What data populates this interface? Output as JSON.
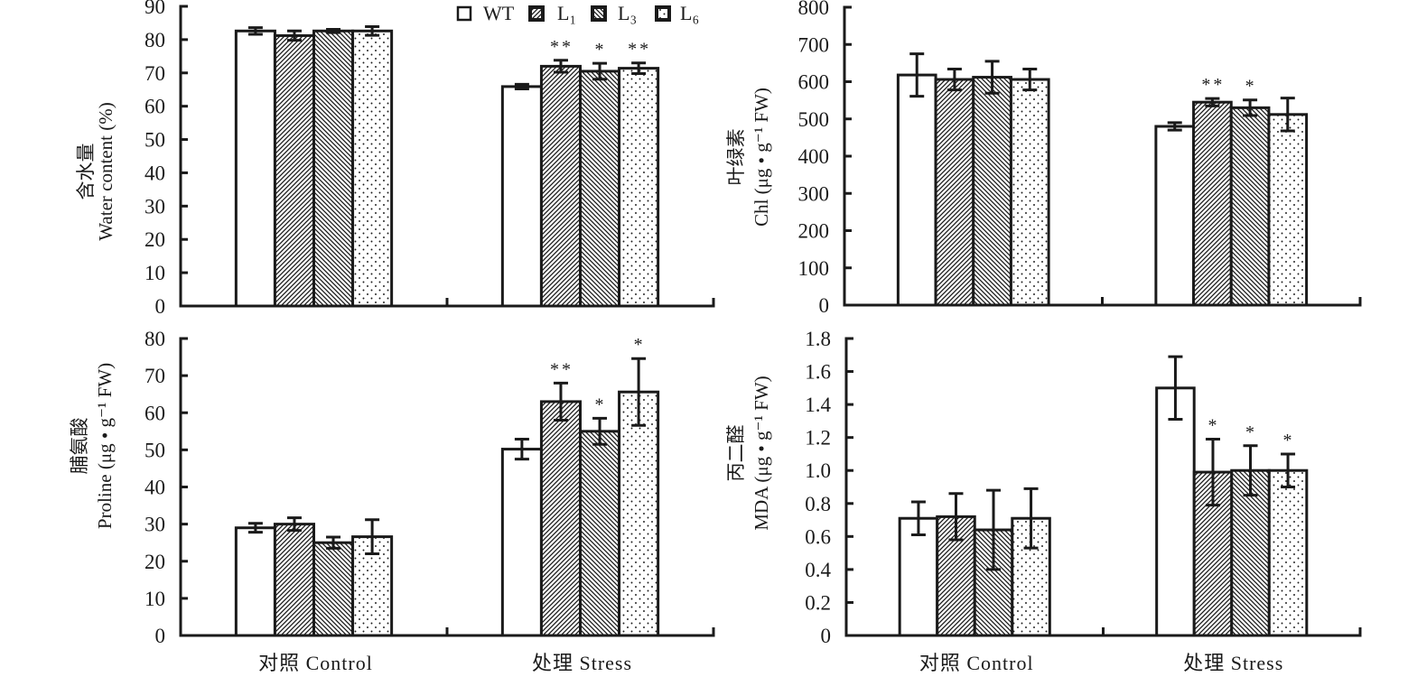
{
  "legend": {
    "placement": "top-center",
    "entries": [
      {
        "label": "WT",
        "pattern": "open"
      },
      {
        "label": "L₁",
        "pattern": "forward-hatch"
      },
      {
        "label": "L₃",
        "pattern": "backward-hatch"
      },
      {
        "label": "L₆",
        "pattern": "dots"
      }
    ]
  },
  "chart_data": [
    {
      "type": "bar",
      "title": "",
      "ylabel_cn": "含水量",
      "ylabel": "Water content (%)",
      "xlabel": "",
      "categories": [
        "对照 Control",
        "处理 Stress"
      ],
      "xticklabels": [],
      "ylim": [
        0,
        90
      ],
      "yticks": [
        "0",
        "10",
        "20",
        "30",
        "40",
        "50",
        "60",
        "70",
        "80",
        "90"
      ],
      "grid": false,
      "series": [
        {
          "name": "WT",
          "values": [
            82.6,
            65.9
          ],
          "errors": [
            1.0,
            0.7
          ],
          "significance": [
            "",
            ""
          ]
        },
        {
          "name": "L1",
          "values": [
            81.2,
            72.0
          ],
          "errors": [
            1.4,
            1.8
          ],
          "significance": [
            "",
            "**"
          ]
        },
        {
          "name": "L3",
          "values": [
            82.6,
            70.5
          ],
          "errors": [
            0.5,
            2.4
          ],
          "significance": [
            "",
            "*"
          ]
        },
        {
          "name": "L6",
          "values": [
            82.6,
            71.4
          ],
          "errors": [
            1.3,
            1.6
          ],
          "significance": [
            "",
            "**"
          ]
        }
      ]
    },
    {
      "type": "bar",
      "title": "",
      "ylabel_cn": "叶绿素",
      "ylabel": "Chl (μg • g⁻¹  FW)",
      "xlabel": "",
      "categories": [
        "对照 Control",
        "处理 Stress"
      ],
      "xticklabels": [],
      "ylim": [
        0,
        800
      ],
      "yticks": [
        "0",
        "100",
        "200",
        "300",
        "400",
        "500",
        "600",
        "700",
        "800"
      ],
      "grid": false,
      "series": [
        {
          "name": "WT",
          "values": [
            618,
            480
          ],
          "errors": [
            57,
            10
          ],
          "significance": [
            "",
            ""
          ]
        },
        {
          "name": "L1",
          "values": [
            606,
            545
          ],
          "errors": [
            28,
            10
          ],
          "significance": [
            "",
            "**"
          ]
        },
        {
          "name": "L3",
          "values": [
            612,
            530
          ],
          "errors": [
            43,
            21
          ],
          "significance": [
            "",
            "*"
          ]
        },
        {
          "name": "L6",
          "values": [
            606,
            512
          ],
          "errors": [
            28,
            44
          ],
          "significance": [
            "",
            ""
          ]
        }
      ]
    },
    {
      "type": "bar",
      "title": "",
      "ylabel_cn": "脯氨酸",
      "ylabel": "Proline (μg • g⁻¹  FW)",
      "xlabel": "",
      "categories": [
        "对照 Control",
        "处理 Stress"
      ],
      "xticklabels": [
        "对照 Control",
        "处理 Stress"
      ],
      "ylim": [
        0,
        80
      ],
      "yticks": [
        "0",
        "10",
        "20",
        "30",
        "40",
        "50",
        "60",
        "70",
        "80"
      ],
      "grid": false,
      "series": [
        {
          "name": "WT",
          "values": [
            29.0,
            50.2
          ],
          "errors": [
            1.2,
            2.7
          ],
          "significance": [
            "",
            ""
          ]
        },
        {
          "name": "L1",
          "values": [
            30.0,
            63.0
          ],
          "errors": [
            1.7,
            5.0
          ],
          "significance": [
            "",
            "**"
          ]
        },
        {
          "name": "L3",
          "values": [
            25.0,
            55.0
          ],
          "errors": [
            1.5,
            3.5
          ],
          "significance": [
            "",
            "*"
          ]
        },
        {
          "name": "L6",
          "values": [
            26.6,
            65.6
          ],
          "errors": [
            4.6,
            9.0
          ],
          "significance": [
            "",
            "*"
          ]
        }
      ]
    },
    {
      "type": "bar",
      "title": "",
      "ylabel_cn": "丙二醛",
      "ylabel": "MDA (μg • g⁻¹  FW)",
      "xlabel": "",
      "categories": [
        "对照 Control",
        "处理 Stress"
      ],
      "xticklabels": [
        "对照 Control",
        "处理 Stress"
      ],
      "ylim": [
        0,
        1.8
      ],
      "yticks": [
        "0",
        "0.2",
        "0.4",
        "0.6",
        "0.8",
        "1.0",
        "1.2",
        "1.4",
        "1.6",
        "1.8"
      ],
      "grid": false,
      "series": [
        {
          "name": "WT",
          "values": [
            0.71,
            1.5
          ],
          "errors": [
            0.1,
            0.19
          ],
          "significance": [
            "",
            ""
          ]
        },
        {
          "name": "L1",
          "values": [
            0.72,
            0.99
          ],
          "errors": [
            0.14,
            0.2
          ],
          "significance": [
            "",
            "*"
          ]
        },
        {
          "name": "L3",
          "values": [
            0.64,
            1.0
          ],
          "errors": [
            0.24,
            0.15
          ],
          "significance": [
            "",
            "*"
          ]
        },
        {
          "name": "L6",
          "values": [
            0.71,
            1.0
          ],
          "errors": [
            0.18,
            0.1
          ],
          "significance": [
            "",
            "*"
          ]
        }
      ]
    }
  ]
}
